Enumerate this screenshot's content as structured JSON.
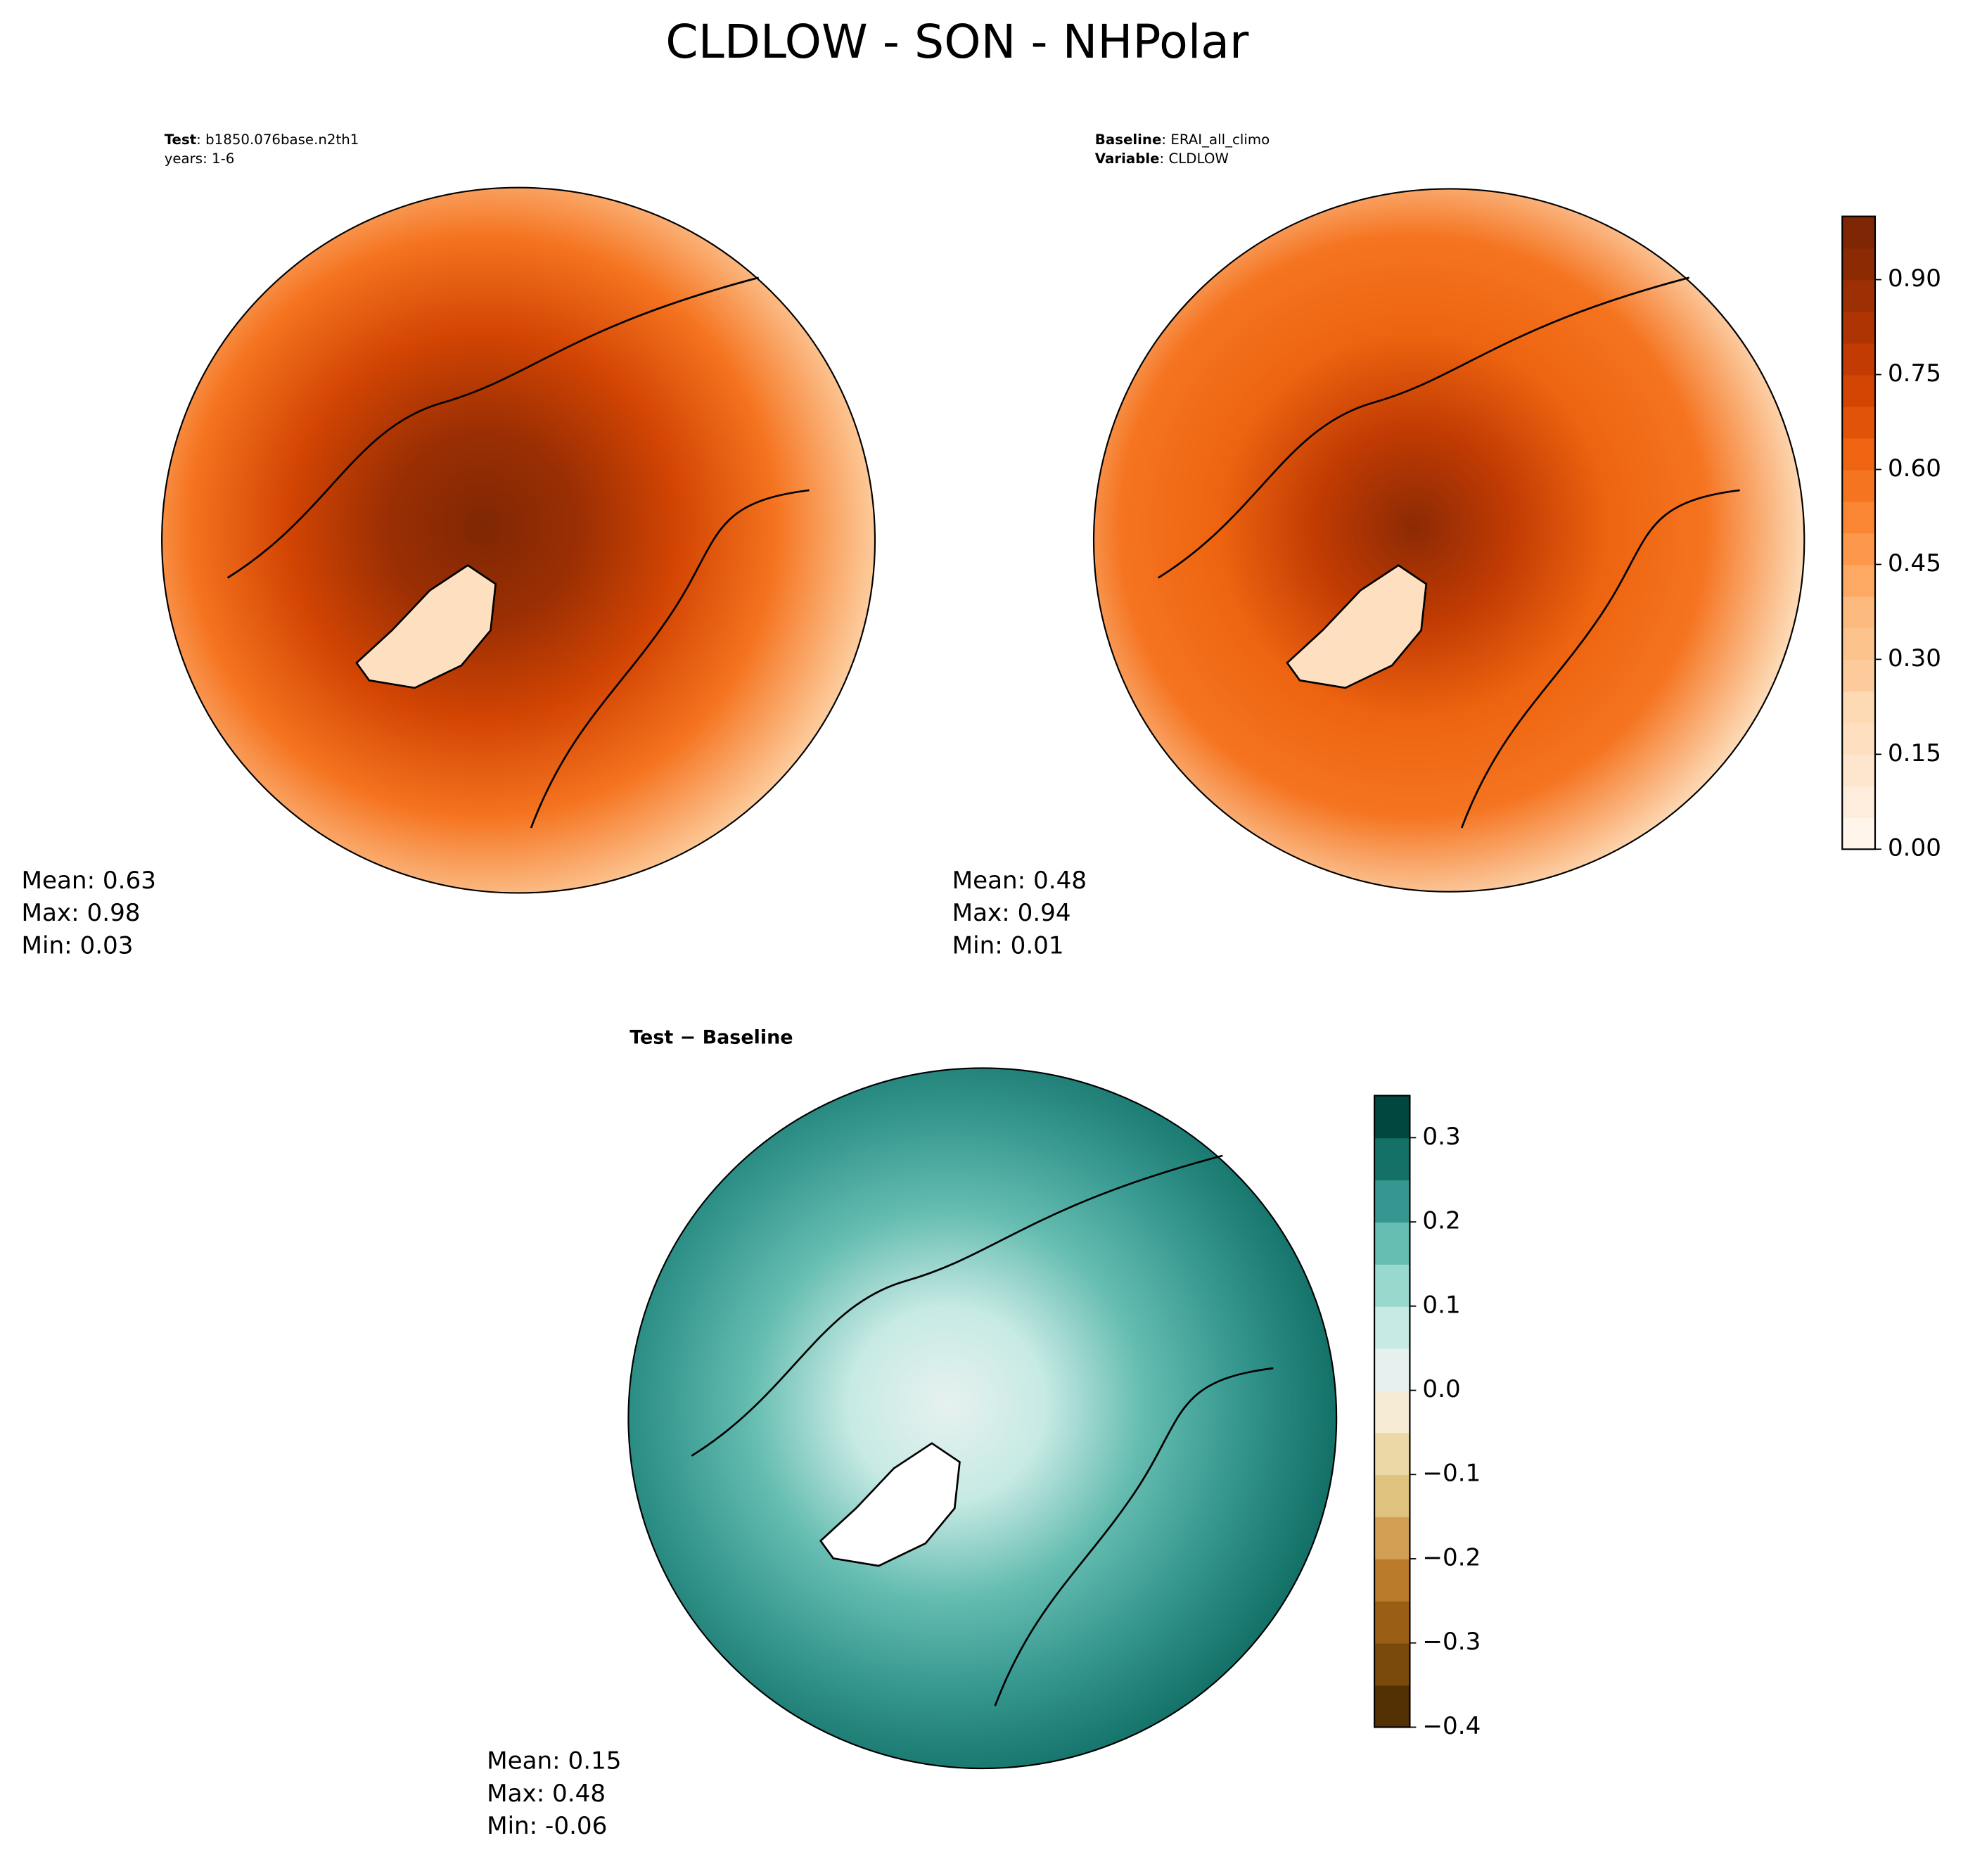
{
  "title": "CLDLOW - SON - NHPolar",
  "chart_data": [
    {
      "type": "map",
      "subtitle_lines": [
        [
          {
            "text": "Test",
            "bold": true
          },
          {
            "text": ": b1850.076base.n2th1"
          }
        ],
        [
          {
            "text": "years: 1-6"
          }
        ]
      ],
      "stats": [
        "Mean:  0.63",
        "Max:  0.98",
        "Min:  0.03"
      ]
    },
    {
      "type": "map",
      "subtitle_lines": [
        [
          {
            "text": "Baseline",
            "bold": true
          },
          {
            "text": ": ERAI_all_climo"
          }
        ],
        [
          {
            "text": "Variable",
            "bold": true
          },
          {
            "text": ": CLDLOW"
          }
        ]
      ],
      "stats": [
        "Mean:  0.48",
        "Max:  0.94",
        "Min:  0.01"
      ],
      "colorbar": {
        "lim": [
          0,
          1
        ],
        "ticks": [
          {
            "value": 0,
            "label": "0.00"
          },
          {
            "value": 0.15,
            "label": "0.15"
          },
          {
            "value": 0.3,
            "label": "0.30"
          },
          {
            "value": 0.45,
            "label": "0.45"
          },
          {
            "value": 0.6,
            "label": "0.60"
          },
          {
            "value": 0.75,
            "label": "0.75"
          },
          {
            "value": 0.9,
            "label": "0.90"
          }
        ],
        "colors": [
          "#fff5eb",
          "#feeddc",
          "#fee6ce",
          "#fee0c1",
          "#fdd9b4",
          "#fdcb9b",
          "#fdc38d",
          "#fdba7f",
          "#fda863",
          "#fd974b",
          "#fa8533",
          "#f57420",
          "#ee6410",
          "#e2530a",
          "#d34503",
          "#c13b03",
          "#ae3403",
          "#9c2f03",
          "#8c2a04",
          "#7f2704"
        ]
      }
    },
    {
      "type": "map",
      "subtitle_lines": [
        [
          {
            "text": "Test − Baseline",
            "bold": true
          }
        ]
      ],
      "stats": [
        "Mean:  0.15",
        "Max:  0.48",
        "Min: -0.06"
      ],
      "colorbar": {
        "lim": [
          -0.4,
          0.35
        ],
        "ticks": [
          {
            "value": -0.4,
            "label": "−0.4"
          },
          {
            "value": -0.3,
            "label": "−0.3"
          },
          {
            "value": -0.2,
            "label": "−0.2"
          },
          {
            "value": -0.1,
            "label": "−0.1"
          },
          {
            "value": 0,
            "label": "0.0"
          },
          0.1,
          0.2,
          0.3
        ],
        "colors": [
          "#543005",
          "#7a4a0c",
          "#9a5f14",
          "#b97b29",
          "#d2a055",
          "#dfc27d",
          "#ecd7a7",
          "#f5ecd3",
          "#e6f1ef",
          "#c7eae4",
          "#99d8cd",
          "#66bdb1",
          "#35978f",
          "#137168",
          "#01463f"
        ]
      }
    }
  ]
}
